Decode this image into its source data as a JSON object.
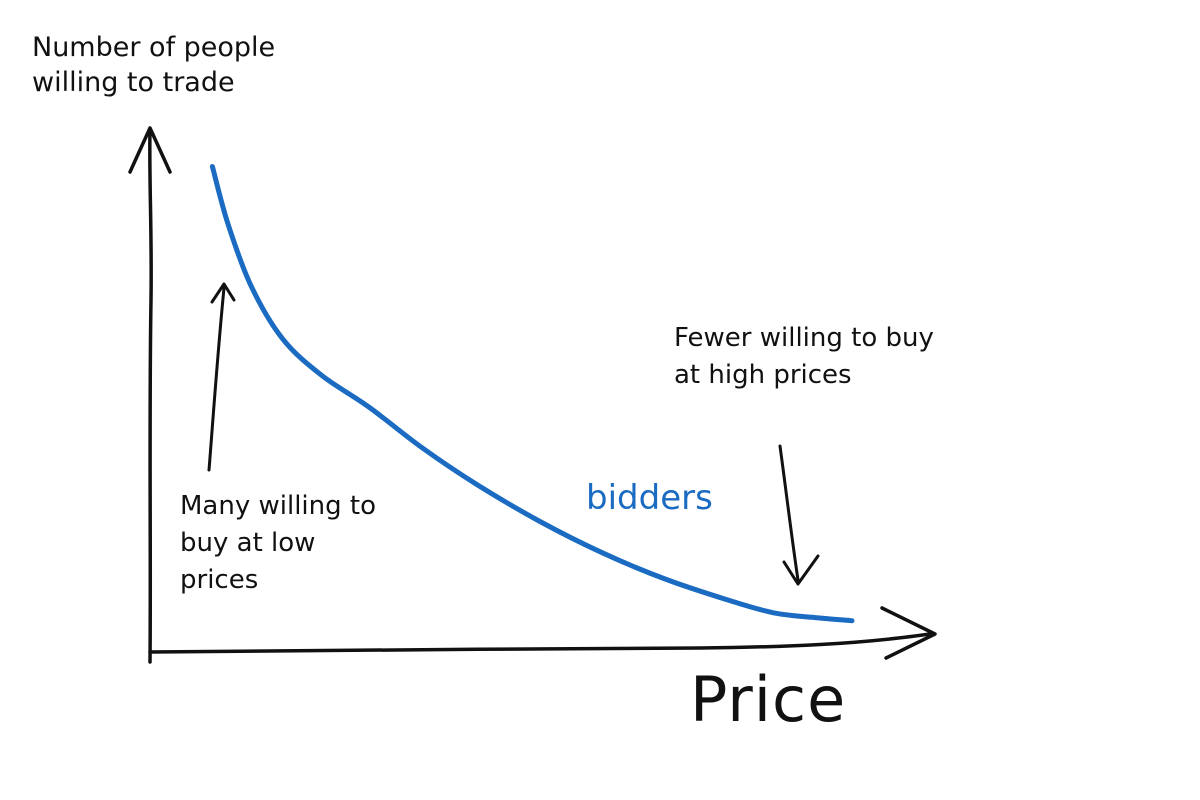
{
  "chart_data": {
    "type": "line",
    "title": "",
    "xlabel": "Price",
    "ylabel": "Number of people willing to trade",
    "x_ticks": "none",
    "y_ticks": "none",
    "grid": false,
    "series": [
      {
        "name": "bidders",
        "color": "#1a6bc1",
        "points": [
          [
            0.08,
            0.93
          ],
          [
            0.1,
            0.82
          ],
          [
            0.13,
            0.7
          ],
          [
            0.17,
            0.6
          ],
          [
            0.22,
            0.53
          ],
          [
            0.28,
            0.47
          ],
          [
            0.35,
            0.39
          ],
          [
            0.42,
            0.32
          ],
          [
            0.5,
            0.25
          ],
          [
            0.58,
            0.19
          ],
          [
            0.66,
            0.14
          ],
          [
            0.74,
            0.1
          ],
          [
            0.8,
            0.075
          ],
          [
            0.86,
            0.065
          ],
          [
            0.9,
            0.06
          ]
        ]
      }
    ],
    "annotations": [
      {
        "id": "low",
        "text": "Many willing to buy at low prices",
        "arrow_direction": "up"
      },
      {
        "id": "high",
        "text": "Fewer willing to buy at high prices",
        "arrow_direction": "down"
      }
    ]
  }
}
